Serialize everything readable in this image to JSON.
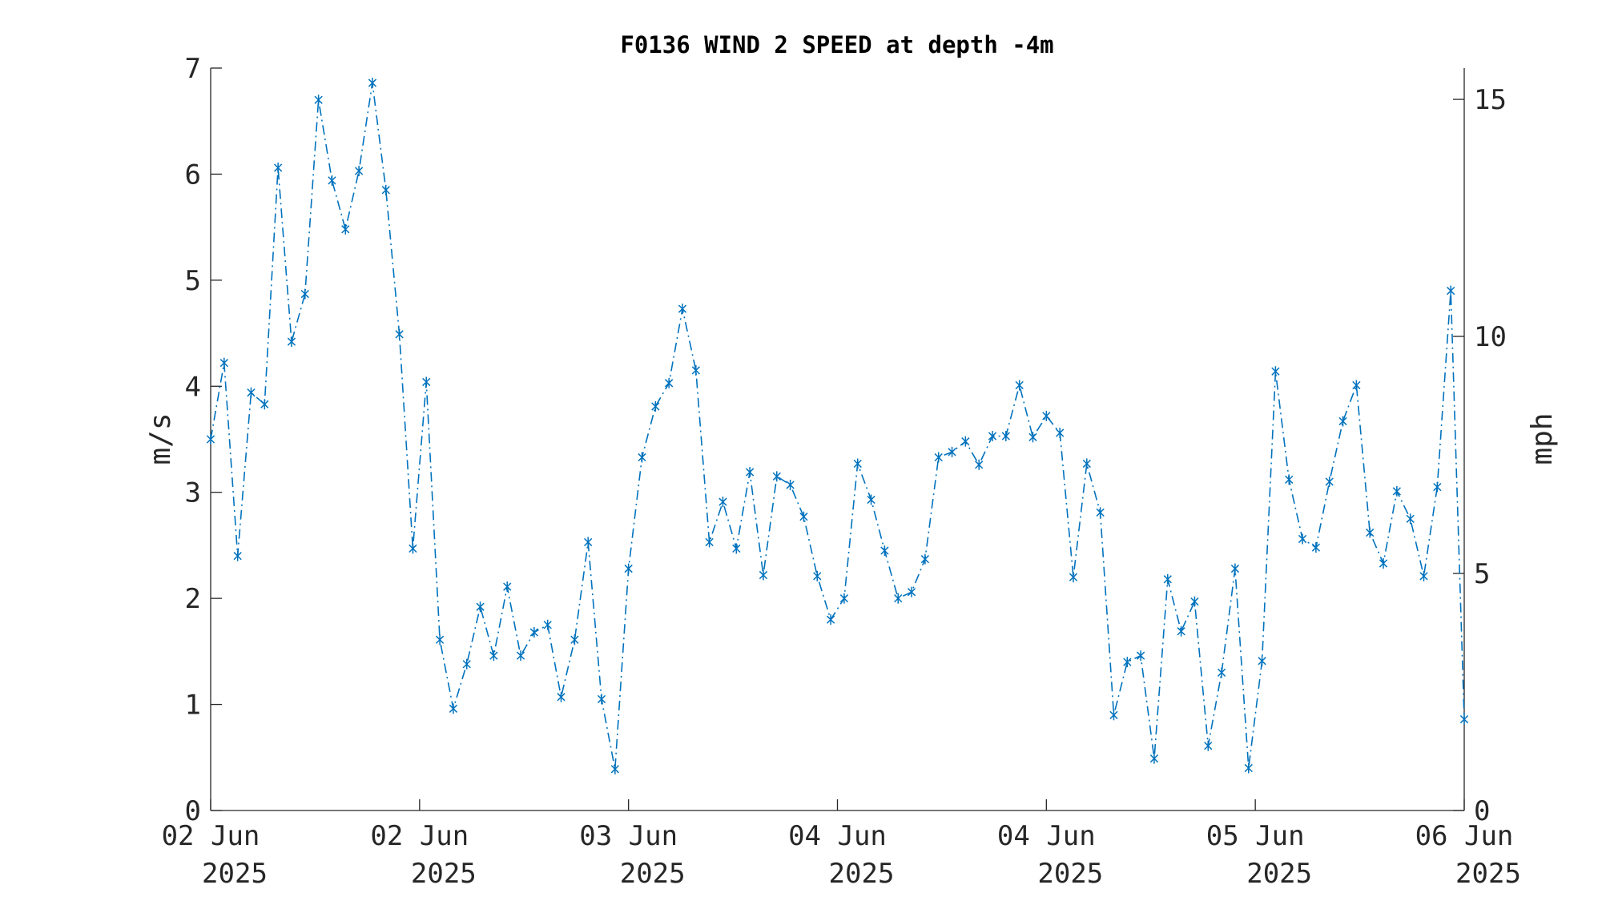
{
  "chart_data": {
    "type": "line",
    "title": "F0136 WIND 2 SPEED at depth -4m",
    "ylabel": "m/s",
    "ylabel_right": "mph",
    "ylim": [
      0,
      7
    ],
    "ylim_right": [
      0,
      15.66
    ],
    "yticks": [
      "0",
      "1",
      "2",
      "3",
      "4",
      "5",
      "6",
      "7"
    ],
    "yticks_right": [
      "0",
      "5",
      "10",
      "15"
    ],
    "xlim": [
      "2025-06-02 00:00",
      "2025-06-06 00:00"
    ],
    "xticks": [
      {
        "line1": "02 Jun",
        "line2": "2025"
      },
      {
        "line1": "02 Jun",
        "line2": "2025"
      },
      {
        "line1": "03 Jun",
        "line2": "2025"
      },
      {
        "line1": "04 Jun",
        "line2": "2025"
      },
      {
        "line1": "04 Jun",
        "line2": "2025"
      },
      {
        "line1": "05 Jun",
        "line2": "2025"
      },
      {
        "line1": "06 Jun",
        "line2": "2025"
      }
    ],
    "grid": false,
    "marker": "asterisk",
    "line_style": "dash-dot",
    "series": [
      {
        "color": "#0072BD",
        "values": [
          3.5,
          4.22,
          2.4,
          3.94,
          3.83,
          6.06,
          4.42,
          4.87,
          6.7,
          5.94,
          5.48,
          6.03,
          6.86,
          5.85,
          4.49,
          2.47,
          4.04,
          1.61,
          0.96,
          1.38,
          1.92,
          1.46,
          2.11,
          1.46,
          1.68,
          1.75,
          1.07,
          1.61,
          2.53,
          1.05,
          0.39,
          2.28,
          3.33,
          3.81,
          4.03,
          4.73,
          4.15,
          2.53,
          2.91,
          2.47,
          3.19,
          2.22,
          3.15,
          3.07,
          2.77,
          2.21,
          1.8,
          2.0,
          3.27,
          2.93,
          2.45,
          2.0,
          2.06,
          2.37,
          3.33,
          3.38,
          3.48,
          3.26,
          3.53,
          3.53,
          4.01,
          3.52,
          3.72,
          3.56,
          2.2,
          3.27,
          2.81,
          0.9,
          1.4,
          1.46,
          0.49,
          2.18,
          1.69,
          1.97,
          0.61,
          1.3,
          2.28,
          0.4,
          1.41,
          4.14,
          3.12,
          2.56,
          2.48,
          3.1,
          3.67,
          4.01,
          2.62,
          2.33,
          3.01,
          2.75,
          2.21,
          3.05,
          4.9,
          0.86
        ]
      }
    ]
  }
}
